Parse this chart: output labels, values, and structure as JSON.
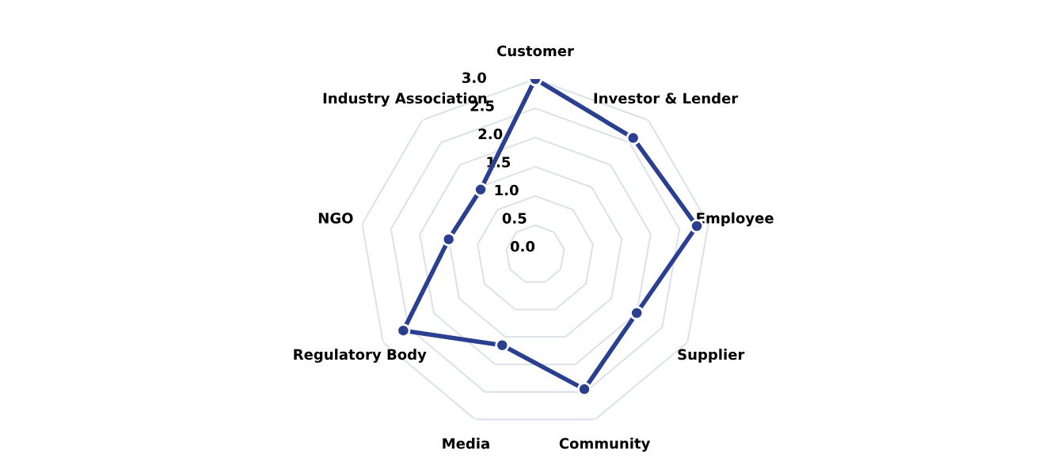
{
  "chart_data": {
    "type": "radar",
    "categories": [
      "Customer",
      "Investor & Lender",
      "Employee",
      "Supplier",
      "Community",
      "Media",
      "Regulatory Body",
      "NGO",
      "Industry Association"
    ],
    "series": [
      {
        "color": "#2a3f8f",
        "values": [
          3.0,
          2.6,
          2.8,
          2.0,
          2.45,
          1.65,
          2.6,
          1.5,
          1.45
        ]
      }
    ],
    "ylim": [
      0,
      3
    ],
    "yticks": [
      {
        "value": 0,
        "label": "0.0"
      },
      {
        "value": 0.5,
        "label": "0.5"
      },
      {
        "value": 1,
        "label": "1.0"
      },
      {
        "value": 1.5,
        "label": "1.5"
      },
      {
        "value": 2,
        "label": "2.0"
      },
      {
        "value": 2.5,
        "label": "2.5"
      },
      {
        "value": 3,
        "label": "3.0"
      }
    ],
    "grid": true,
    "marker": "circle",
    "line_style": "solid",
    "legend": false
  }
}
